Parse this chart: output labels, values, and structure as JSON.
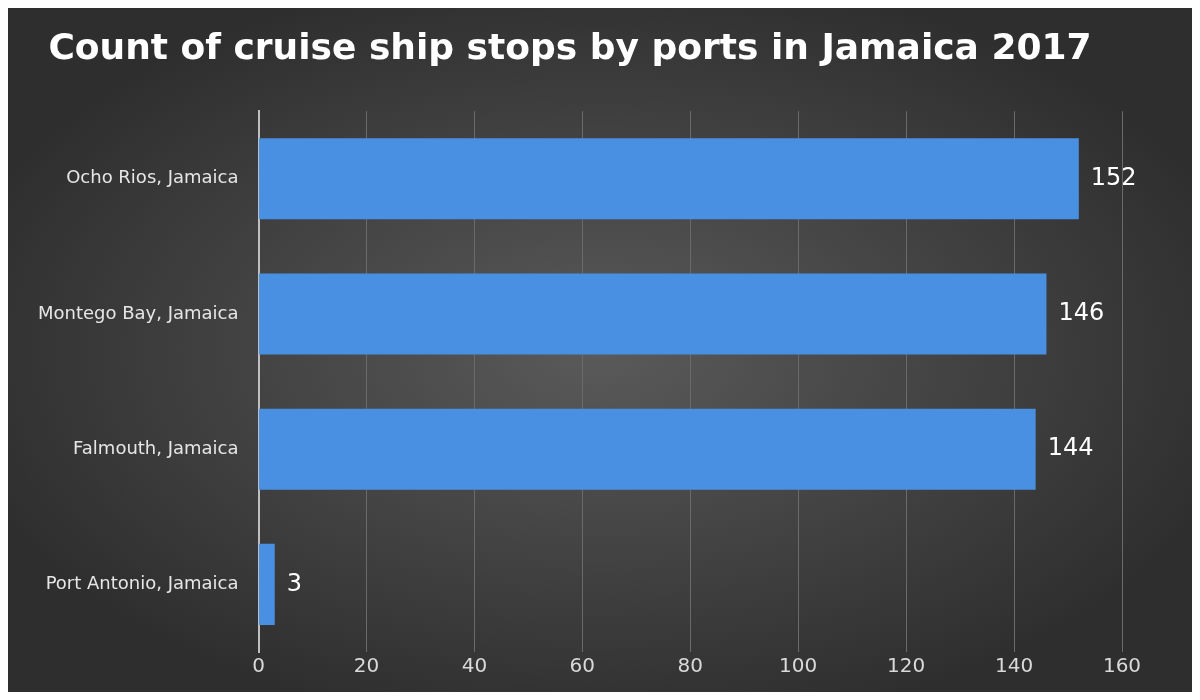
{
  "chart_data": {
    "type": "bar",
    "orientation": "horizontal",
    "title": "Count of cruise ship stops by ports in Jamaica 2017",
    "categories": [
      "Ocho Rios, Jamaica",
      "Montego Bay, Jamaica",
      "Falmouth, Jamaica",
      "Port Antonio, Jamaica"
    ],
    "values": [
      152,
      146,
      144,
      3
    ],
    "color": "#4a90e2",
    "data_labels": true,
    "xlim": [
      0,
      160
    ],
    "xticks": [
      0,
      20,
      40,
      60,
      80,
      100,
      120,
      140,
      160
    ],
    "grid": "x",
    "legend": false
  }
}
